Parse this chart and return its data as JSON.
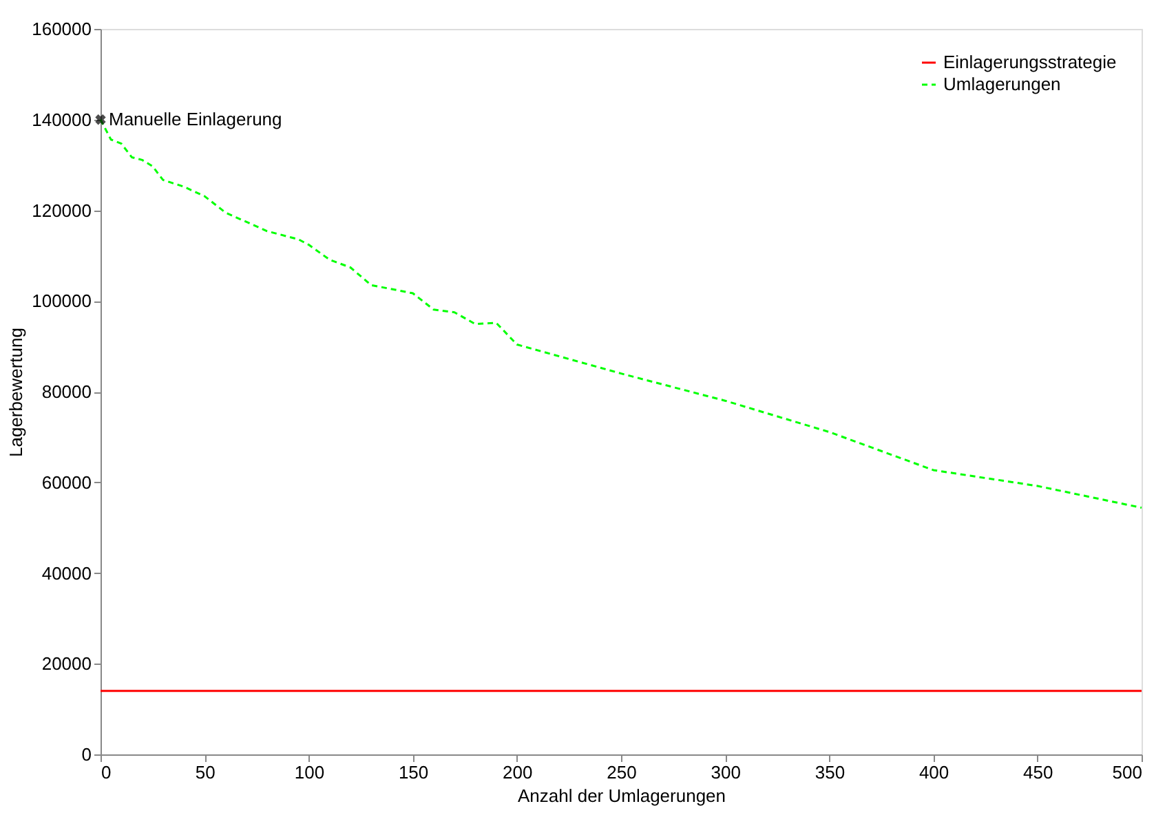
{
  "chart_data": {
    "type": "line",
    "xlabel": "Anzahl der Umlagerungen",
    "ylabel": "Lagerbewertung",
    "xlim": [
      0,
      500
    ],
    "ylim": [
      0,
      160000
    ],
    "xticks": [
      0,
      50,
      100,
      150,
      200,
      250,
      300,
      350,
      400,
      450,
      500
    ],
    "yticks": [
      0,
      20000,
      40000,
      60000,
      80000,
      100000,
      120000,
      140000,
      160000
    ],
    "grid": false,
    "legend": "top right",
    "series": [
      {
        "name": "Einlagerungsstrategie",
        "color": "#ff0000",
        "line_style": "solid",
        "x": [
          0,
          500
        ],
        "values": [
          14000,
          14000
        ]
      },
      {
        "name": "Umlagerungen",
        "color": "#00ff00",
        "line_style": "dashed",
        "x": [
          0,
          5,
          10,
          15,
          20,
          25,
          30,
          40,
          50,
          60,
          80,
          95,
          100,
          110,
          120,
          130,
          150,
          160,
          170,
          180,
          190,
          200,
          250,
          300,
          350,
          400,
          450,
          500
        ],
        "values": [
          140000,
          135600,
          134700,
          131700,
          131100,
          129700,
          126700,
          125200,
          123100,
          119500,
          115400,
          113600,
          112400,
          109100,
          107400,
          103500,
          101700,
          98100,
          97500,
          94900,
          95200,
          90400,
          84000,
          78000,
          71100,
          62700,
          59200,
          54400
        ]
      }
    ],
    "annotations": [
      {
        "text": "Manuelle Einlagerung",
        "x": 0,
        "y": 140000
      }
    ]
  }
}
